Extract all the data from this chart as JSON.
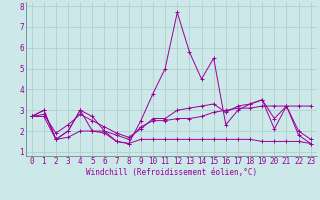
{
  "xlabel": "Windchill (Refroidissement éolien,°C)",
  "background_color": "#cce8e8",
  "grid_color": "#aacccc",
  "line_color": "#990099",
  "xlim": [
    -0.5,
    23.5
  ],
  "ylim": [
    0.8,
    8.2
  ],
  "yticks": [
    1,
    2,
    3,
    4,
    5,
    6,
    7,
    8
  ],
  "xticks": [
    0,
    1,
    2,
    3,
    4,
    5,
    6,
    7,
    8,
    9,
    10,
    11,
    12,
    13,
    14,
    15,
    16,
    17,
    18,
    19,
    20,
    21,
    22,
    23
  ],
  "series": [
    [
      2.7,
      3.0,
      1.6,
      2.0,
      3.0,
      2.0,
      2.0,
      1.5,
      1.4,
      2.5,
      3.8,
      5.0,
      7.7,
      5.8,
      4.5,
      5.5,
      2.3,
      3.0,
      3.3,
      3.5,
      2.1,
      3.2,
      1.8,
      1.4
    ],
    [
      2.7,
      3.0,
      1.6,
      2.0,
      3.0,
      2.7,
      2.0,
      1.8,
      1.6,
      2.2,
      2.5,
      2.5,
      2.6,
      2.6,
      2.7,
      2.9,
      3.0,
      3.1,
      3.1,
      3.2,
      3.2,
      3.2,
      3.2,
      3.2
    ],
    [
      2.7,
      2.7,
      1.6,
      1.7,
      2.0,
      2.0,
      1.9,
      1.5,
      1.4,
      1.6,
      1.6,
      1.6,
      1.6,
      1.6,
      1.6,
      1.6,
      1.6,
      1.6,
      1.6,
      1.5,
      1.5,
      1.5,
      1.5,
      1.4
    ],
    [
      2.7,
      2.8,
      1.9,
      2.3,
      2.8,
      2.5,
      2.2,
      1.9,
      1.7,
      2.1,
      2.6,
      2.6,
      3.0,
      3.1,
      3.2,
      3.3,
      2.9,
      3.2,
      3.3,
      3.5,
      2.6,
      3.2,
      2.0,
      1.6
    ]
  ],
  "tick_fontsize": 5.5,
  "xlabel_fontsize": 5.5,
  "marker_size": 2.5,
  "line_width": 0.7
}
